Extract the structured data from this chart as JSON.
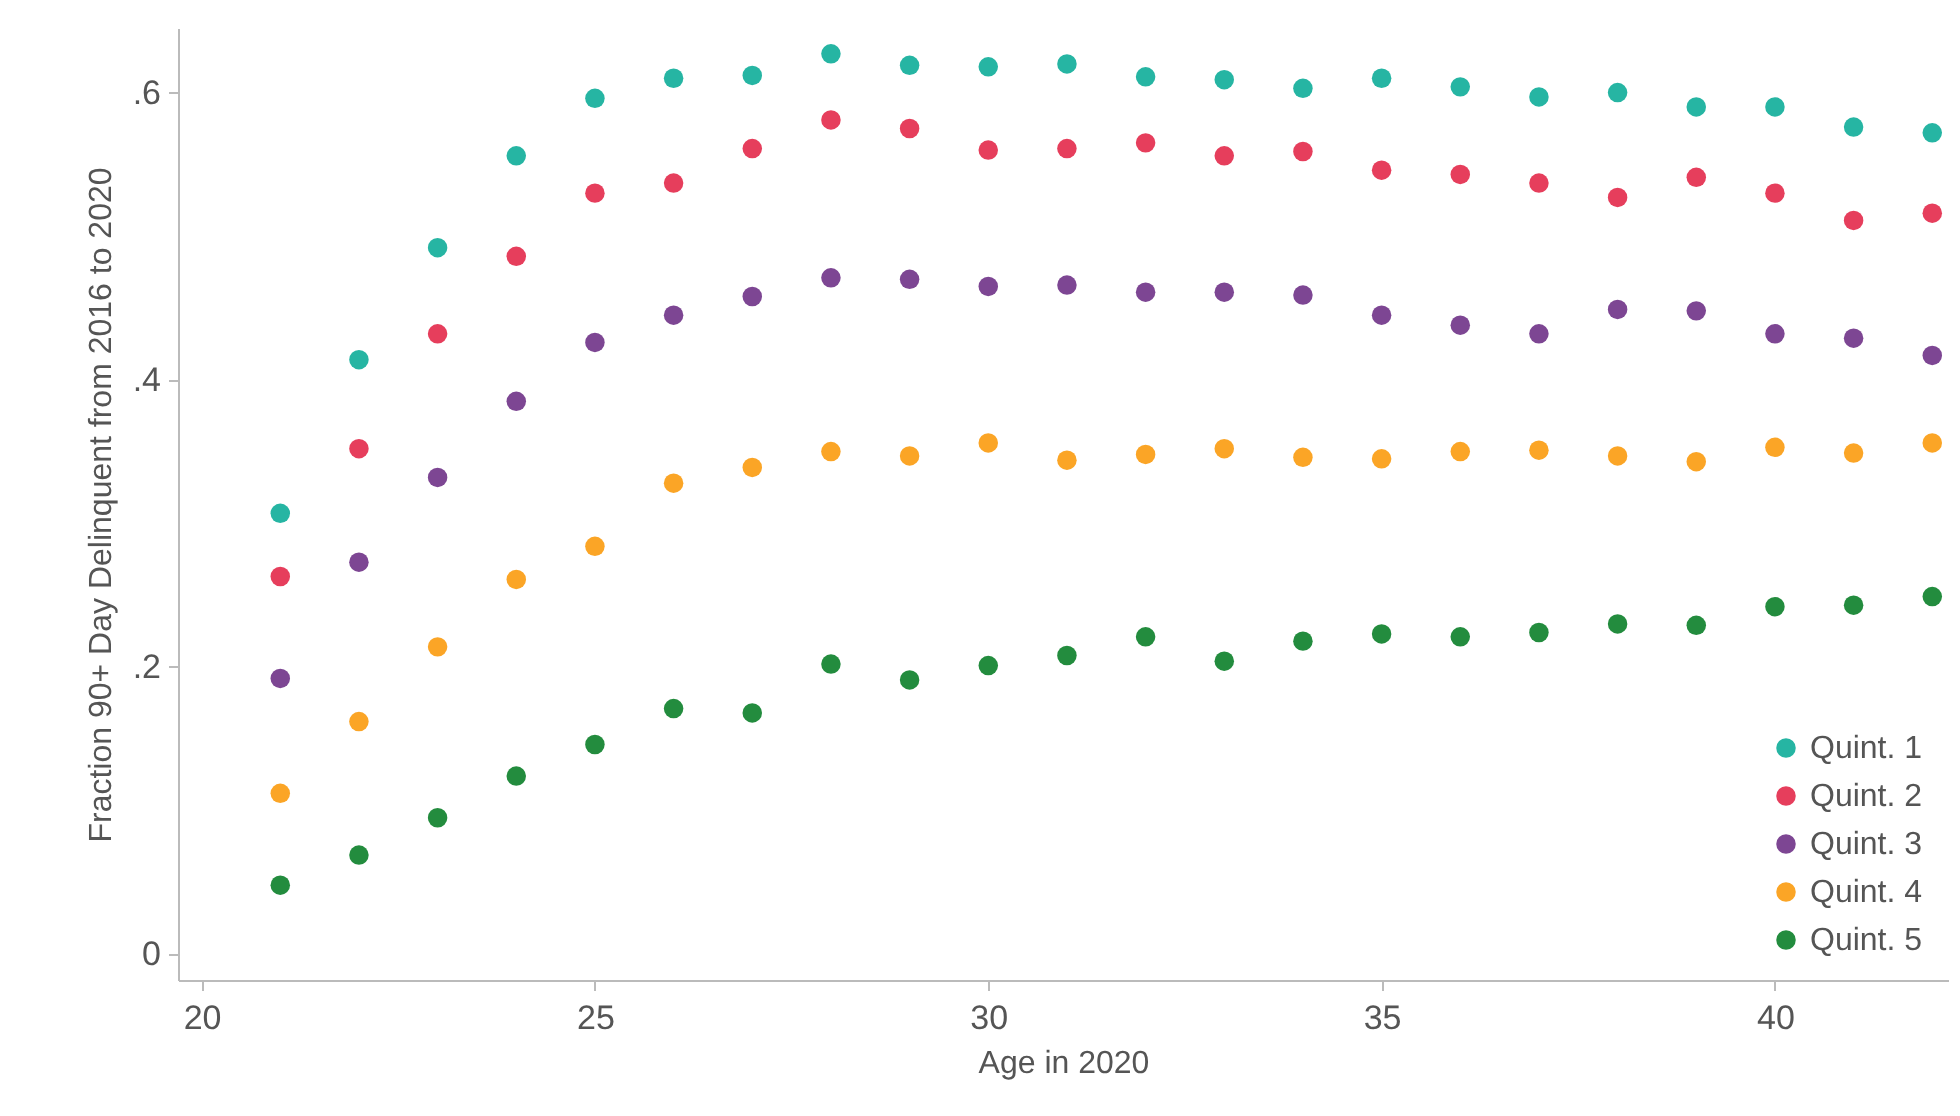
{
  "chart_data": {
    "type": "scatter",
    "xlabel": "Age in 2020",
    "ylabel": "Fraction 90+ Day Delinquent from 2016 to 2020",
    "x": [
      21,
      22,
      23,
      24,
      25,
      26,
      27,
      28,
      29,
      30,
      31,
      32,
      33,
      34,
      35,
      36,
      37,
      38,
      39,
      40,
      41,
      42
    ],
    "series": [
      {
        "name": "Quint. 1",
        "color": "#26b5a3",
        "values": [
          0.307,
          0.414,
          0.492,
          0.556,
          0.596,
          0.61,
          0.612,
          0.627,
          0.619,
          0.618,
          0.62,
          0.611,
          0.609,
          0.603,
          0.61,
          0.604,
          0.597,
          0.6,
          0.59,
          0.59,
          0.576,
          0.572
        ]
      },
      {
        "name": "Quint. 2",
        "color": "#e63e5c",
        "values": [
          0.263,
          0.352,
          0.432,
          0.486,
          0.53,
          0.537,
          0.561,
          0.581,
          0.575,
          0.56,
          0.561,
          0.565,
          0.556,
          0.559,
          0.546,
          0.543,
          0.537,
          0.527,
          0.541,
          0.53,
          0.511,
          0.516
        ]
      },
      {
        "name": "Quint. 3",
        "color": "#7d4693",
        "values": [
          0.192,
          0.273,
          0.332,
          0.385,
          0.426,
          0.445,
          0.458,
          0.471,
          0.47,
          0.465,
          0.466,
          0.461,
          0.461,
          0.459,
          0.445,
          0.438,
          0.432,
          0.449,
          0.448,
          0.432,
          0.429,
          0.417
        ]
      },
      {
        "name": "Quint. 4",
        "color": "#fba526",
        "values": [
          0.112,
          0.162,
          0.214,
          0.261,
          0.284,
          0.328,
          0.339,
          0.35,
          0.347,
          0.356,
          0.344,
          0.348,
          0.352,
          0.346,
          0.345,
          0.35,
          0.351,
          0.347,
          0.343,
          0.353,
          0.349,
          0.356
        ]
      },
      {
        "name": "Quint. 5",
        "color": "#238c3e",
        "values": [
          0.048,
          0.069,
          0.095,
          0.124,
          0.146,
          0.171,
          0.168,
          0.202,
          0.191,
          0.201,
          0.208,
          0.221,
          0.204,
          0.218,
          0.223,
          0.221,
          0.224,
          0.23,
          0.229,
          0.242,
          0.243,
          0.249
        ]
      }
    ],
    "xlim": [
      19.7,
      42.2
    ],
    "xticks": [
      20,
      25,
      30,
      35,
      40
    ],
    "ylim": [
      -0.018,
      0.645
    ],
    "yticks": [
      0,
      {
        "value": 0.2,
        "label": ".2"
      },
      {
        "value": 0.4,
        "label": ".4"
      },
      {
        "value": 0.6,
        "label": ".6"
      }
    ],
    "grid": false,
    "legend": "bottom right",
    "marker": "circle"
  }
}
